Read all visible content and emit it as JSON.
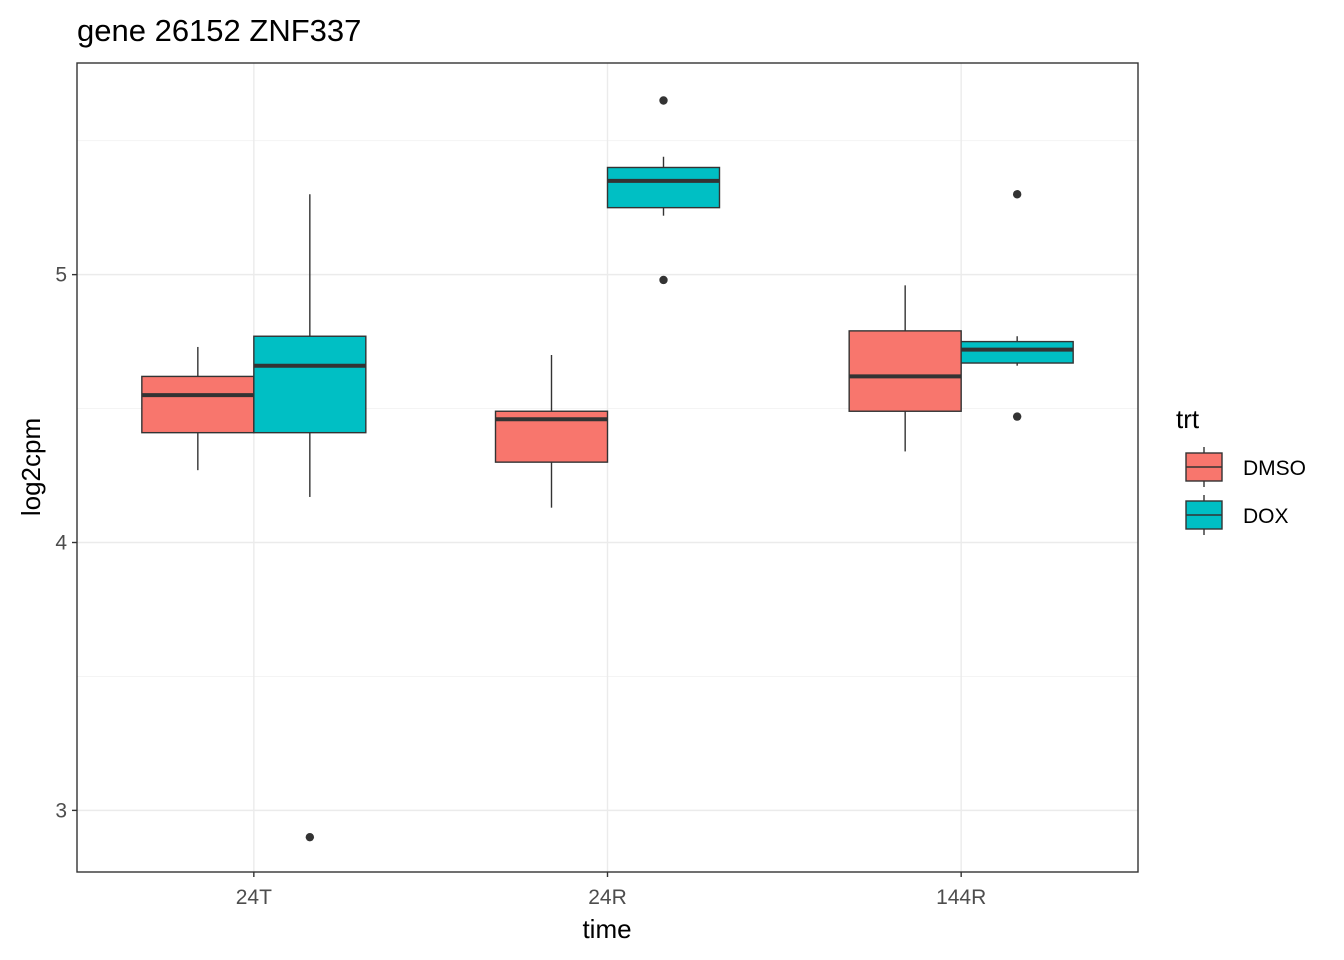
{
  "chart_data": {
    "type": "boxplot",
    "title": "gene 26152 ZNF337",
    "xlabel": "time",
    "ylabel": "log2cpm",
    "categories": [
      "24T",
      "24R",
      "144R"
    ],
    "yticks": [
      3,
      4,
      5
    ],
    "ylim": [
      2.77,
      5.79
    ],
    "grid": true,
    "legend": {
      "title": "trt",
      "position": "right"
    },
    "series": [
      {
        "name": "DMSO",
        "color": "#F8766D",
        "boxes": [
          {
            "category": "24T",
            "whisker_low": 4.27,
            "q1": 4.41,
            "median": 4.55,
            "q3": 4.62,
            "whisker_high": 4.73,
            "outliers": []
          },
          {
            "category": "24R",
            "whisker_low": 4.13,
            "q1": 4.3,
            "median": 4.46,
            "q3": 4.49,
            "whisker_high": 4.7,
            "outliers": []
          },
          {
            "category": "144R",
            "whisker_low": 4.34,
            "q1": 4.49,
            "median": 4.62,
            "q3": 4.79,
            "whisker_high": 4.96,
            "outliers": []
          }
        ]
      },
      {
        "name": "DOX",
        "color": "#00BFC4",
        "boxes": [
          {
            "category": "24T",
            "whisker_low": 4.17,
            "q1": 4.41,
            "median": 4.66,
            "q3": 4.77,
            "whisker_high": 5.3,
            "outliers": [
              2.9
            ]
          },
          {
            "category": "24R",
            "whisker_low": 5.22,
            "q1": 5.25,
            "median": 5.35,
            "q3": 5.4,
            "whisker_high": 5.44,
            "outliers": [
              5.65,
              4.98
            ]
          },
          {
            "category": "144R",
            "whisker_low": 4.66,
            "q1": 4.67,
            "median": 4.72,
            "q3": 4.75,
            "whisker_high": 4.77,
            "outliers": [
              5.3,
              4.47
            ]
          }
        ]
      }
    ]
  }
}
